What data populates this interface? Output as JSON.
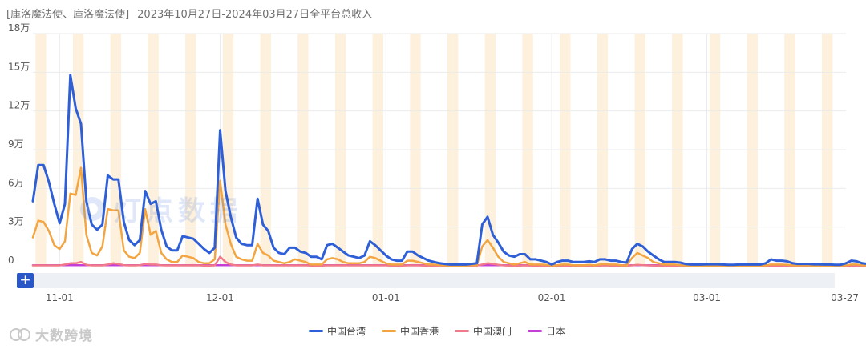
{
  "header": {
    "title": "[庫洛魔法使、庫洛魔法使]",
    "subtitle": "2023年10月27日-2024年03月27日全平台总收入"
  },
  "watermark": {
    "text": "灯点数据"
  },
  "brand": {
    "text": "大数跨境"
  },
  "zoom": {
    "label": "+"
  },
  "legend": [
    {
      "name": "中国台湾",
      "color": "#2e5fd6"
    },
    {
      "name": "中国香港",
      "color": "#f2a541"
    },
    {
      "name": "中国澳门",
      "color": "#f07a8a"
    },
    {
      "name": "日本",
      "color": "#c43fd6"
    }
  ],
  "chart_data": {
    "type": "line",
    "x_range": [
      "2023-10-27",
      "2024-03-27"
    ],
    "x_ticks": [
      "11-01",
      "12-01",
      "01-01",
      "02-01",
      "03-01",
      "03-27"
    ],
    "y_ticks": [
      "0",
      "3万",
      "6万",
      "9万",
      "12万",
      "15万",
      "18万"
    ],
    "ylim": [
      0,
      180000
    ],
    "weekend_bands": true,
    "grid": true,
    "legend_position": "bottom",
    "series": [
      {
        "name": "中国台湾",
        "color": "#2e5fd6",
        "values": [
          50000,
          78000,
          78000,
          65000,
          48000,
          33000,
          48000,
          148000,
          122000,
          110000,
          50000,
          32000,
          28000,
          32000,
          70000,
          67000,
          67000,
          34000,
          20000,
          16000,
          20000,
          58000,
          48000,
          50000,
          28000,
          15000,
          12000,
          12000,
          23000,
          22000,
          21000,
          17000,
          13000,
          10000,
          14000,
          105000,
          58000,
          38000,
          22000,
          17000,
          16000,
          16000,
          52000,
          32000,
          27000,
          14000,
          10000,
          9000,
          14000,
          14000,
          11000,
          10000,
          7000,
          7000,
          5000,
          16000,
          17000,
          14000,
          11000,
          8000,
          7000,
          6000,
          8000,
          19000,
          16000,
          12000,
          8000,
          5000,
          4000,
          4000,
          11000,
          11000,
          8000,
          6000,
          4000,
          3000,
          2000,
          1500,
          1000,
          1000,
          1000,
          1000,
          1500,
          2000,
          32000,
          38000,
          24000,
          18000,
          11000,
          8000,
          7000,
          9000,
          9000,
          5000,
          5000,
          4000,
          3000,
          1000,
          3000,
          4000,
          4000,
          3000,
          3000,
          3000,
          3500,
          3000,
          5000,
          5000,
          4000,
          4000,
          3000,
          2500,
          13000,
          17000,
          15000,
          11000,
          8000,
          5000,
          3000,
          3000,
          3000,
          2500,
          1500,
          1000,
          1000,
          1000,
          1200,
          1200,
          1200,
          1000,
          800,
          800,
          1000,
          1000,
          1000,
          1000,
          1000,
          2000,
          5000,
          4000,
          4000,
          3500,
          2000,
          1500,
          1500,
          1500,
          1200,
          1200,
          1000,
          1000,
          800,
          800,
          2000,
          4000,
          3500,
          2000,
          1500,
          1000
        ]
      },
      {
        "name": "中国香港",
        "color": "#f2a541",
        "values": [
          22000,
          35000,
          34000,
          27000,
          16000,
          13000,
          19000,
          56000,
          55000,
          76000,
          24000,
          10000,
          8000,
          15000,
          44000,
          43000,
          43000,
          12000,
          7000,
          6000,
          10000,
          44000,
          24000,
          27000,
          10000,
          5000,
          3000,
          3000,
          8000,
          7000,
          6000,
          3000,
          2000,
          2000,
          5000,
          66000,
          32000,
          17000,
          7000,
          5000,
          4000,
          4000,
          17000,
          10000,
          8000,
          4000,
          3000,
          2000,
          3000,
          5000,
          4000,
          3000,
          1000,
          1000,
          1000,
          5000,
          6000,
          5000,
          3000,
          2000,
          2000,
          2000,
          3000,
          7000,
          6000,
          4000,
          2000,
          1000,
          1000,
          1000,
          4000,
          4000,
          3000,
          2000,
          1000,
          1000,
          500,
          300,
          200,
          200,
          200,
          200,
          500,
          500,
          15000,
          20000,
          14000,
          7000,
          3000,
          2000,
          1000,
          2000,
          3000,
          1000,
          1000,
          1000,
          800,
          200,
          500,
          1000,
          1000,
          500,
          500,
          500,
          800,
          500,
          1000,
          1500,
          1000,
          1000,
          500,
          400,
          6000,
          10000,
          8000,
          6000,
          3000,
          2000,
          1000,
          1000,
          1000,
          500,
          300,
          200,
          200,
          200,
          200,
          200,
          200,
          200,
          100,
          100,
          200,
          200,
          200,
          200,
          200,
          300,
          1000,
          1000,
          1000,
          800,
          500,
          300,
          300,
          300,
          200,
          200,
          200,
          200,
          200,
          200,
          500,
          1000,
          1000,
          500,
          300,
          200
        ]
      },
      {
        "name": "中国澳门",
        "color": "#f07a8a",
        "values": [
          300,
          300,
          300,
          300,
          300,
          300,
          1000,
          2000,
          2000,
          3000,
          800,
          300,
          300,
          300,
          1000,
          2000,
          1500,
          500,
          300,
          300,
          500,
          1500,
          1000,
          1000,
          400,
          300,
          300,
          300,
          300,
          300,
          300,
          300,
          200,
          200,
          300,
          7000,
          3000,
          1000,
          300,
          300,
          300,
          300,
          1000,
          300,
          300,
          300,
          300,
          300,
          300,
          300,
          300,
          300,
          200,
          200,
          200,
          300,
          300,
          300,
          300,
          300,
          300,
          300,
          300,
          300,
          300,
          300,
          300,
          200,
          200,
          200,
          300,
          300,
          300,
          200,
          200,
          200,
          100,
          100,
          100,
          100,
          100,
          100,
          100,
          200,
          1000,
          2000,
          1500,
          800,
          300,
          200,
          200,
          200,
          300,
          200,
          200,
          200,
          100,
          100,
          100,
          200,
          200,
          100,
          100,
          100,
          100,
          100,
          200,
          300,
          200,
          200,
          200,
          100,
          300,
          800,
          500,
          300,
          200,
          200,
          100,
          100,
          100,
          100,
          100,
          100,
          100,
          100,
          100,
          100,
          100,
          100,
          100,
          100,
          100,
          100,
          100,
          100,
          100,
          100,
          100,
          100,
          100,
          100,
          100,
          100,
          100,
          100,
          100,
          100,
          100,
          100,
          100,
          100,
          100,
          100,
          100,
          100,
          100,
          100
        ]
      },
      {
        "name": "日本",
        "color": "#c43fd6",
        "values": [
          500,
          500,
          500,
          500,
          500,
          500,
          500,
          500,
          500,
          500,
          500,
          500,
          500,
          500,
          500,
          500,
          500,
          500,
          500,
          500,
          500,
          500,
          500,
          500,
          500,
          500,
          500,
          500,
          500,
          500,
          500,
          500,
          500,
          500,
          500,
          500,
          500,
          500,
          500,
          500,
          500,
          500,
          500,
          500,
          500,
          500,
          500,
          500,
          500,
          500,
          500,
          500,
          500,
          500,
          500,
          500,
          500,
          500,
          500,
          500,
          500,
          500,
          500,
          500,
          500,
          500,
          500,
          500,
          500,
          500,
          500,
          500,
          500,
          500,
          500,
          500,
          500,
          500,
          500,
          500,
          500,
          500,
          500,
          500,
          500,
          500,
          500,
          500,
          500,
          500,
          500,
          500,
          500,
          500,
          500,
          500,
          500,
          500,
          500,
          500,
          500,
          500,
          500,
          500,
          500,
          500,
          500,
          500,
          500,
          500,
          500,
          500,
          500,
          500,
          500,
          500,
          500,
          500,
          500,
          500,
          500,
          500,
          500,
          500,
          500,
          500,
          500,
          500,
          500,
          500,
          500,
          500,
          500,
          500,
          500,
          500,
          500,
          500,
          500,
          500,
          500,
          500,
          500,
          500,
          500,
          500,
          500,
          500,
          500,
          500,
          500,
          500,
          500,
          500,
          500,
          500,
          500,
          500,
          500,
          500,
          500,
          500
        ]
      }
    ]
  }
}
